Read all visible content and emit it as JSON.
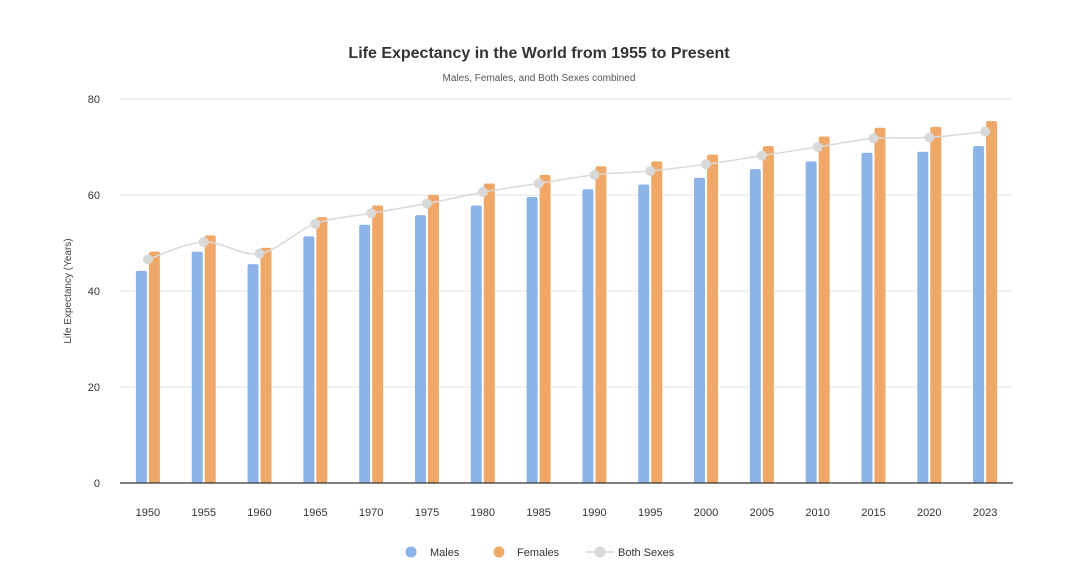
{
  "chart_data": {
    "type": "bar",
    "title": "Life Expectancy in the World from 1955 to Present",
    "subtitle": "Males, Females, and Both Sexes combined",
    "xlabel": "",
    "ylabel": "Life Expectancy (Years)",
    "ylim": [
      0,
      80
    ],
    "yticks": [
      0,
      20,
      40,
      60,
      80
    ],
    "grid": true,
    "legend_position": "bottom",
    "categories": [
      "1950",
      "1955",
      "1960",
      "1965",
      "1970",
      "1975",
      "1980",
      "1985",
      "1990",
      "1995",
      "2000",
      "2005",
      "2010",
      "2015",
      "2020",
      "2023"
    ],
    "series": [
      {
        "name": "Males",
        "type": "bar",
        "color": "#8cb4e8",
        "values": [
          44.2,
          48.2,
          45.6,
          51.4,
          53.8,
          55.8,
          57.8,
          59.6,
          61.2,
          62.2,
          63.6,
          65.4,
          67.0,
          68.8,
          69.0,
          70.2
        ]
      },
      {
        "name": "Females",
        "type": "bar",
        "color": "#f0a868",
        "values": [
          48.2,
          51.6,
          49.0,
          55.4,
          57.8,
          60.0,
          62.4,
          64.2,
          66.0,
          67.0,
          68.4,
          70.2,
          72.2,
          74.0,
          74.2,
          75.4
        ]
      },
      {
        "name": "Both Sexes",
        "type": "line",
        "color": "#d9d9d9",
        "values": [
          46.6,
          50.2,
          47.8,
          54.0,
          56.2,
          58.2,
          60.6,
          62.4,
          64.2,
          65.0,
          66.4,
          68.2,
          70.0,
          71.8,
          72.0,
          73.2
        ]
      }
    ]
  }
}
